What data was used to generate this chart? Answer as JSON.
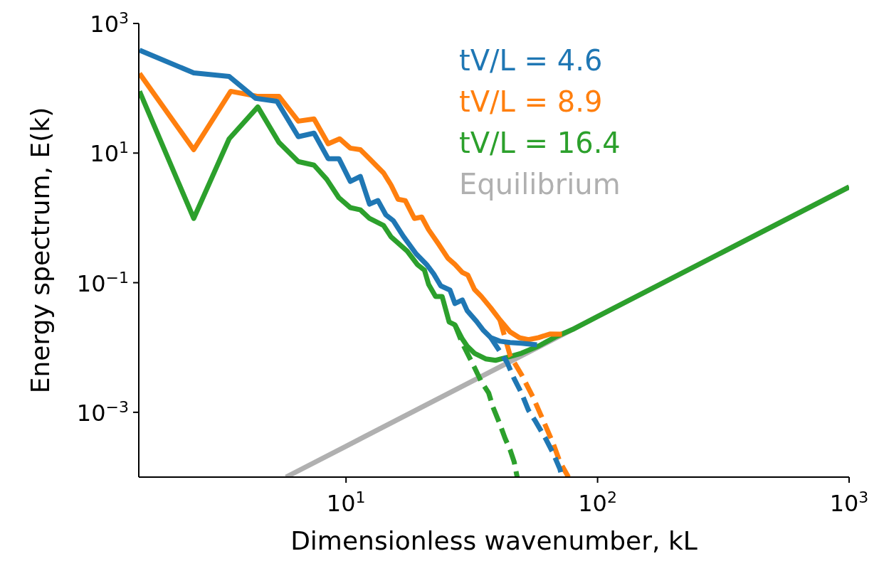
{
  "chart_data": {
    "type": "line",
    "xlabel": "Dimensionless wavenumber, kL",
    "ylabel": "Energy spectrum, E(k)",
    "log": "xy",
    "grid": false,
    "legend": "top right",
    "marker": "none",
    "xlim": [
      1.5,
      1000
    ],
    "ylim": [
      0.0001,
      1000
    ],
    "xticks": [
      {
        "value": 10,
        "label": "10$^{1}$"
      },
      {
        "value": 100,
        "label": "10$^{2}$"
      },
      {
        "value": 1000,
        "label": "10$^{3}$"
      }
    ],
    "yticks": [
      {
        "value": 0.001,
        "label": "10$^{−3}$"
      },
      {
        "value": 0.1,
        "label": "10$^{−1}$"
      },
      {
        "value": 10,
        "label": "10$^{1}$"
      },
      {
        "value": 1000,
        "label": "10$^{3}$"
      }
    ],
    "series": [
      {
        "color": "#1f77b4",
        "line_style": "dashed",
        "x": [
          37.6,
          40.1,
          43.7,
          46.6,
          49.8,
          53.1,
          56.7,
          62.1,
          66.4,
          70.8,
          72.2
        ],
        "values": [
          0.0142,
          0.00973,
          0.00587,
          0.00329,
          0.00199,
          0.00108,
          0.000724,
          0.000395,
          0.000239,
          0.000134,
          0.0001
        ]
      },
      {
        "name": "tV/L = 4.6",
        "color": "#1f77b4",
        "line_style": "solid",
        "x": [
          1.51,
          2.48,
          3.43,
          4.37,
          5.31,
          6.46,
          7.46,
          8.49,
          9.37,
          10.4,
          11.4,
          12.4,
          13.4,
          14.4,
          15.4,
          16.9,
          19.0,
          20.9,
          22.3,
          23.8,
          25.9,
          27.1,
          29.0,
          30.3,
          33.0,
          35.2,
          37.6,
          40.9,
          44.9,
          49.8,
          57.4
        ],
        "values": [
          387,
          173,
          152,
          70,
          63,
          17.9,
          20.3,
          8.2,
          8.2,
          3.65,
          4.36,
          1.63,
          1.85,
          1.11,
          0.91,
          0.52,
          0.279,
          0.191,
          0.137,
          0.0895,
          0.0769,
          0.0476,
          0.0541,
          0.037,
          0.0254,
          0.0183,
          0.0142,
          0.0125,
          0.0119,
          0.0116,
          0.011
        ]
      },
      {
        "color": "#ff7f0e",
        "line_style": "dashed",
        "x": [
          40.9,
          44.9,
          49.8,
          55.6,
          60.5,
          66.4,
          70.8,
          76.6
        ],
        "values": [
          0.0267,
          0.00755,
          0.00383,
          0.00166,
          0.000781,
          0.00034,
          0.000172,
          0.0001
        ]
      },
      {
        "name": "tV/L = 8.9",
        "color": "#ff7f0e",
        "line_style": "solid",
        "x": [
          1.51,
          2.48,
          3.48,
          4.43,
          5.41,
          6.46,
          7.46,
          8.49,
          9.43,
          10.4,
          11.4,
          12.4,
          14.1,
          15.1,
          16.1,
          17.2,
          18.7,
          20.0,
          21.3,
          23.3,
          25.4,
          27.1,
          29.0,
          30.5,
          32.4,
          34.5,
          37.6,
          40.9,
          44.9,
          48.8,
          53.1,
          58.2,
          64.6,
          72.2
        ],
        "values": [
          169,
          11.3,
          89.8,
          75.2,
          75.2,
          31.1,
          33.6,
          13.9,
          16.6,
          11.9,
          11.3,
          8.17,
          4.93,
          3.21,
          1.94,
          1.85,
          0.98,
          1.03,
          0.656,
          0.396,
          0.239,
          0.191,
          0.144,
          0.131,
          0.0789,
          0.0614,
          0.041,
          0.0267,
          0.0174,
          0.0142,
          0.0132,
          0.0142,
          0.0161,
          0.016
        ]
      },
      {
        "color": "#2ca02c",
        "line_style": "dashed",
        "x": [
          27.1,
          29.0,
          32.4,
          34.5,
          36.9,
          38.4,
          40.9,
          42.9,
          44.9,
          46.6,
          47.9
        ],
        "values": [
          0.0223,
          0.0116,
          0.00492,
          0.00297,
          0.00199,
          0.0012,
          0.000655,
          0.000395,
          0.000264,
          0.000172,
          0.0001
        ]
      },
      {
        "name": "tV/L = 16.4",
        "color": "#2ca02c",
        "line_style": "solid",
        "x": [
          1.51,
          2.48,
          3.43,
          4.46,
          5.41,
          6.46,
          7.46,
          8.38,
          9.37,
          10.4,
          11.4,
          12.4,
          14.1,
          15.1,
          17.5,
          19.2,
          20.5,
          21.3,
          22.7,
          24.1,
          25.7,
          27.1,
          29.0,
          30.3,
          32.4,
          35.9,
          39.3,
          43.7,
          49.8,
          58.2,
          68.8,
          79.6,
          100,
          300,
          1000
        ],
        "values": [
          89.8,
          0.98,
          16.6,
          51.5,
          14.6,
          7.39,
          6.52,
          3.94,
          2.04,
          1.44,
          1.33,
          0.98,
          0.763,
          0.51,
          0.308,
          0.191,
          0.156,
          0.0942,
          0.0614,
          0.0614,
          0.0247,
          0.0223,
          0.0135,
          0.0105,
          0.00815,
          0.00667,
          0.00634,
          0.00702,
          0.00815,
          0.0105,
          0.0149,
          0.019,
          0.03,
          0.27,
          3
        ]
      },
      {
        "name": "Equilibrium",
        "color": "#b0b0b0",
        "line_style": "solid",
        "x": [
          5.77,
          10,
          100,
          1000
        ],
        "values": [
          0.0001,
          0.0003,
          0.03,
          3
        ]
      }
    ]
  }
}
